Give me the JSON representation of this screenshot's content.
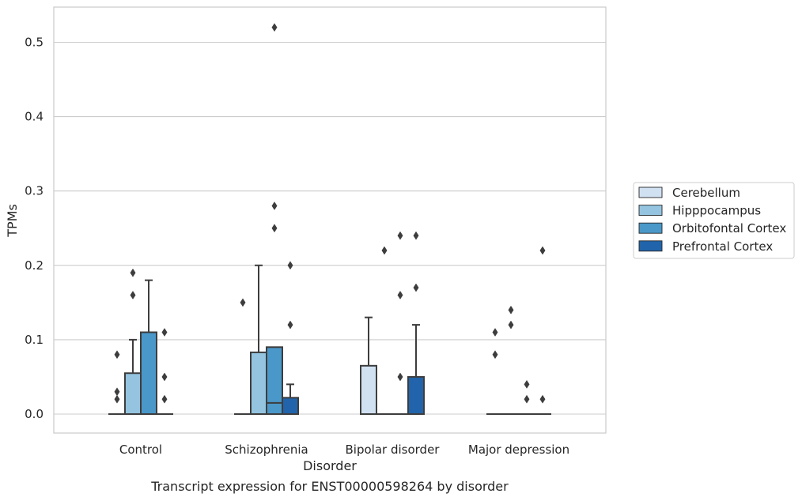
{
  "caption": "Transcript expression for ENST00000598264 by disorder",
  "chart_data": {
    "type": "box",
    "title": "",
    "xlabel": "Disorder",
    "ylabel": "TPMs",
    "ylim": [
      -0.025,
      0.545
    ],
    "yticks": [
      0.0,
      0.1,
      0.2,
      0.3,
      0.4,
      0.5
    ],
    "ytick_labels": [
      "0.0",
      "0.1",
      "0.2",
      "0.3",
      "0.4",
      "0.5"
    ],
    "grid": "horizontal",
    "legend_position": "right",
    "categories": [
      "Control",
      "Schizophrenia",
      "Bipolar disorder",
      "Major depression"
    ],
    "series": [
      {
        "name": "Cerebellum",
        "color": "#d0e1f2",
        "boxes": [
          {
            "q1": 0,
            "median": 0,
            "q3": 0,
            "whislo": 0,
            "whishi": 0,
            "fliers": [
              0.02,
              0.03,
              0.08
            ]
          },
          {
            "q1": 0,
            "median": 0,
            "q3": 0,
            "whislo": 0,
            "whishi": 0,
            "fliers": [
              0.15
            ]
          },
          {
            "q1": 0,
            "median": 0,
            "q3": 0.065,
            "whislo": 0,
            "whishi": 0.13,
            "fliers": []
          },
          {
            "q1": 0,
            "median": 0,
            "q3": 0,
            "whislo": 0,
            "whishi": 0,
            "fliers": [
              0.08,
              0.11
            ]
          }
        ]
      },
      {
        "name": "Hipppocampus",
        "color": "#94c4df",
        "boxes": [
          {
            "q1": 0,
            "median": 0,
            "q3": 0.055,
            "whislo": 0,
            "whishi": 0.1,
            "fliers": [
              0.16,
              0.19
            ]
          },
          {
            "q1": 0,
            "median": 0,
            "q3": 0.083,
            "whislo": 0,
            "whishi": 0.2,
            "fliers": []
          },
          {
            "q1": 0,
            "median": 0,
            "q3": 0,
            "whislo": 0,
            "whishi": 0,
            "fliers": [
              0.22
            ]
          },
          {
            "q1": 0,
            "median": 0,
            "q3": 0,
            "whislo": 0,
            "whishi": 0,
            "fliers": [
              0.12,
              0.14
            ]
          }
        ]
      },
      {
        "name": "Orbitofontal Cortex",
        "color": "#4a98c9",
        "boxes": [
          {
            "q1": 0,
            "median": 0,
            "q3": 0.11,
            "whislo": 0,
            "whishi": 0.18,
            "fliers": []
          },
          {
            "q1": 0,
            "median": 0.015,
            "q3": 0.09,
            "whislo": 0,
            "whishi": 0.09,
            "fliers": [
              0.25,
              0.28,
              0.52
            ]
          },
          {
            "q1": 0,
            "median": 0,
            "q3": 0,
            "whislo": 0,
            "whishi": 0,
            "fliers": [
              0.05,
              0.16,
              0.24
            ]
          },
          {
            "q1": 0,
            "median": 0,
            "q3": 0,
            "whislo": 0,
            "whishi": 0,
            "fliers": [
              0.02,
              0.04
            ]
          }
        ]
      },
      {
        "name": "Prefrontal Cortex",
        "color": "#2164ab",
        "boxes": [
          {
            "q1": 0,
            "median": 0,
            "q3": 0,
            "whislo": 0,
            "whishi": 0,
            "fliers": [
              0.02,
              0.05,
              0.11
            ]
          },
          {
            "q1": 0,
            "median": 0,
            "q3": 0.022,
            "whislo": 0,
            "whishi": 0.04,
            "fliers": [
              0.12,
              0.2
            ]
          },
          {
            "q1": 0,
            "median": 0,
            "q3": 0.05,
            "whislo": 0,
            "whishi": 0.12,
            "fliers": [
              0.17,
              0.24
            ]
          },
          {
            "q1": 0,
            "median": 0,
            "q3": 0,
            "whislo": 0,
            "whishi": 0,
            "fliers": [
              0.02,
              0.22
            ]
          }
        ]
      }
    ]
  }
}
